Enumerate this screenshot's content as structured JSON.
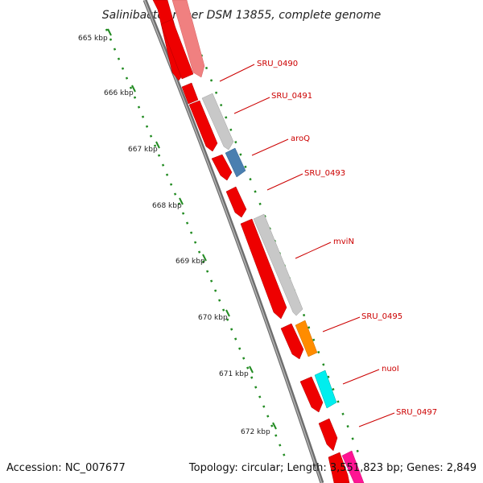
{
  "title": "Salinibacter ruber DSM 13855, complete genome",
  "footer": {
    "accession": "Accession: NC_007677",
    "summary": "Topology: circular; Length: 3,551,823 bp; Genes: 2,849"
  },
  "scale": {
    "unit": "kbp",
    "tick_labels": [
      "665 kbp",
      "666 kbp",
      "667 kbp",
      "668 kbp",
      "669 kbp",
      "670 kbp",
      "671 kbp",
      "672 kbp"
    ]
  },
  "genes": [
    {
      "label": "",
      "color": "#ee0000",
      "track": "inner"
    },
    {
      "label": "",
      "color": "#f08080",
      "track": "outer"
    },
    {
      "label": "SRU_0490",
      "color": "#ee0000",
      "track": "inner"
    },
    {
      "label": "SRU_0491",
      "color": "#c8c8c8",
      "track": "outer"
    },
    {
      "label": "",
      "color": "#ee0000",
      "track": "inner"
    },
    {
      "label": "aroQ",
      "color": "#4a7fb0",
      "track": "outer"
    },
    {
      "label": "",
      "color": "#ee0000",
      "track": "inner"
    },
    {
      "label": "SRU_0493",
      "color": "#ee0000",
      "track": "inner"
    },
    {
      "label": "mviN",
      "color": "#c8c8c8",
      "track": "outer"
    },
    {
      "label": "",
      "color": "#ee0000",
      "track": "inner"
    },
    {
      "label": "SRU_0495",
      "color": "#ff8c00",
      "track": "outer"
    },
    {
      "label": "",
      "color": "#ee0000",
      "track": "inner"
    },
    {
      "label": "nuoI",
      "color": "#00eeee",
      "track": "outer"
    },
    {
      "label": "",
      "color": "#ee0000",
      "track": "inner"
    },
    {
      "label": "SRU_0497",
      "color": "#ee0000",
      "track": "inner"
    },
    {
      "label": "",
      "color": "#ee0000",
      "track": "inner"
    },
    {
      "label": "",
      "color": "#ff1493",
      "track": "outer"
    }
  ],
  "colors": {
    "backbone": "#808080",
    "tick": "#228b22",
    "label_line": "#cc0000"
  }
}
